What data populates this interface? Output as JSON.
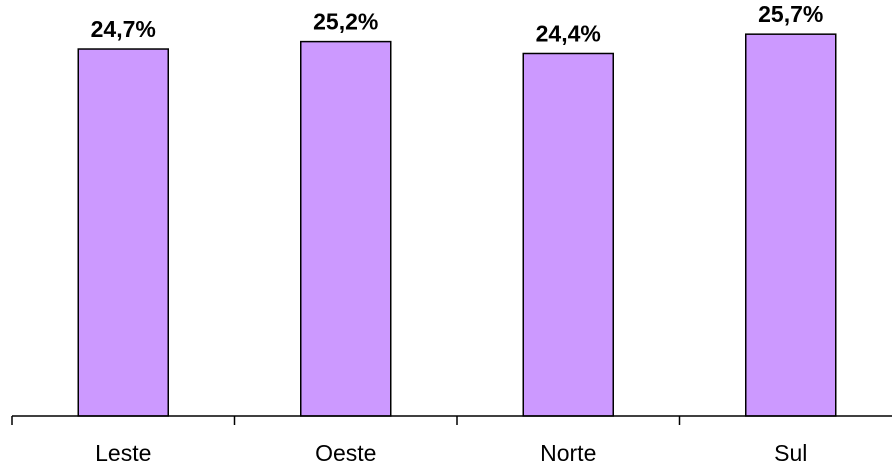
{
  "chart_data": {
    "type": "bar",
    "title": "",
    "xlabel": "",
    "ylabel": "",
    "categories": [
      "Leste",
      "Oeste",
      "Norte",
      "Sul"
    ],
    "values": [
      24.7,
      25.2,
      24.4,
      25.7
    ],
    "value_labels": [
      "24,7%",
      "25,2%",
      "24,4%",
      "25,7%"
    ],
    "unit": "%",
    "ylim": [
      0,
      28
    ],
    "grid": false,
    "legend": "none",
    "colors": {
      "bar_fill": "#cc99ff",
      "bar_stroke": "#000000",
      "axis": "#000000"
    }
  }
}
